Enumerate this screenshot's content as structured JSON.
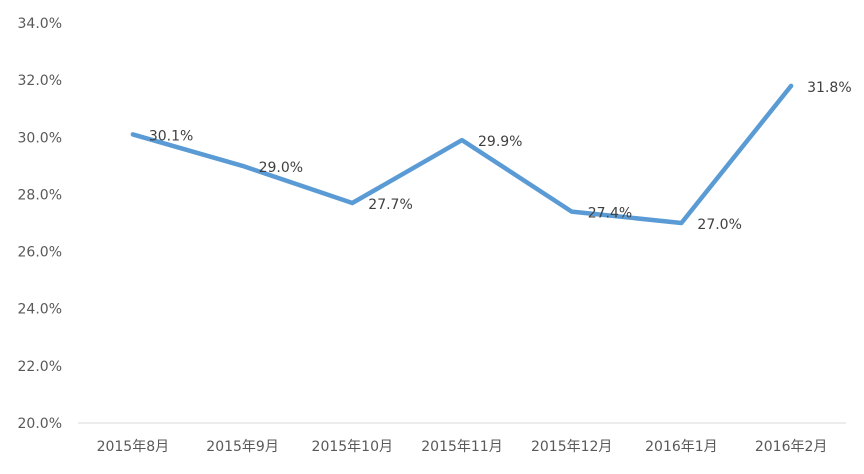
{
  "chart_data": {
    "type": "line",
    "categories": [
      "2015年8月",
      "2015年9月",
      "2015年10月",
      "2015年11月",
      "2015年12月",
      "2016年1月",
      "2016年2月"
    ],
    "series": [
      {
        "values": [
          30.1,
          29.0,
          27.7,
          29.9,
          27.4,
          27.0,
          31.8
        ],
        "labels": [
          "30.1%",
          "29.0%",
          "27.7%",
          "29.9%",
          "27.4%",
          "27.0%",
          "31.8%"
        ]
      }
    ],
    "ylim": [
      20,
      34
    ],
    "yticks": [
      20,
      22,
      24,
      26,
      28,
      30,
      32,
      34
    ],
    "ytick_labels": [
      "20.0%",
      "22.0%",
      "24.0%",
      "26.0%",
      "28.0%",
      "30.0%",
      "32.0%",
      "34.0%"
    ],
    "title": "",
    "xlabel": "",
    "ylabel": "",
    "grid": false,
    "legend": "none",
    "colors": {
      "line": "#5B9BD5",
      "axis": "#D9D9D9",
      "tick_text": "#595959",
      "label_text": "#404040"
    }
  }
}
